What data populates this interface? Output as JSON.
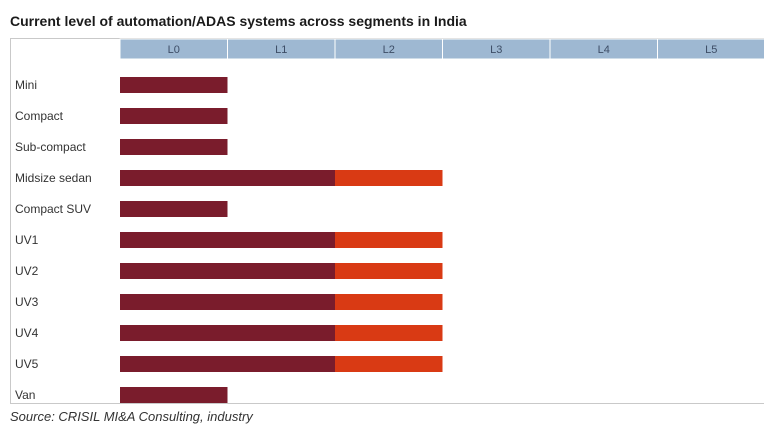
{
  "chart_data": {
    "type": "bar",
    "title": "Current level of automation/ADAS systems across segments in India",
    "source": "Source: CRISIL MI&A Consulting, industry",
    "levels": [
      "L0",
      "L1",
      "L2",
      "L3",
      "L4",
      "L5"
    ],
    "categories": [
      "Mini",
      "Compact",
      "Sub-compact",
      "Midsize sedan",
      "Compact SUV",
      "UV1",
      "UV2",
      "UV3",
      "UV4",
      "UV5",
      "Van"
    ],
    "series": [
      {
        "color": "#7a1c2c",
        "values": [
          1,
          1,
          1,
          2,
          1,
          2,
          2,
          2,
          2,
          2,
          1
        ]
      },
      {
        "color": "#d93a14",
        "values": [
          0,
          0,
          0,
          1,
          0,
          1,
          1,
          1,
          1,
          1,
          0
        ]
      }
    ],
    "header_color": "#9eb8d2"
  }
}
